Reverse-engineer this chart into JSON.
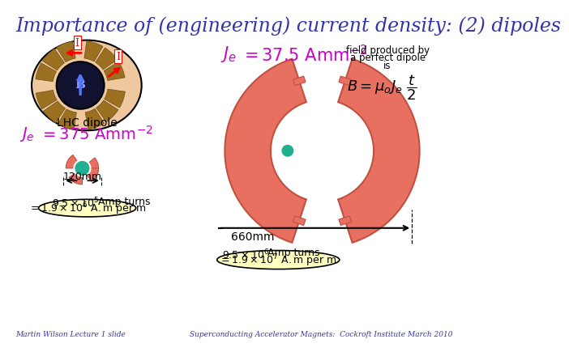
{
  "title": "Importance of (engineering) current density: (2) dipoles",
  "title_color": "#3333aa",
  "bg_color": "#ffffff",
  "footer_left": "Martin Wilson Lecture 1 slide",
  "footer_right": "Superconducting Accelerator Magnets:  Cockroft Institute March 2010",
  "footer_color": "#3333aa",
  "je_top_color": "#cc00cc",
  "je_bottom_color": "#cc00cc",
  "field_color": "#000000",
  "lhc_label": "LHC dipole",
  "salmon_color": "#e87060",
  "salmon_dark": "#c05040",
  "teal_color": "#20b090",
  "eq_bg": "#ffffc0",
  "dim_right_label": "660mm",
  "dim_left_label": "120mm"
}
